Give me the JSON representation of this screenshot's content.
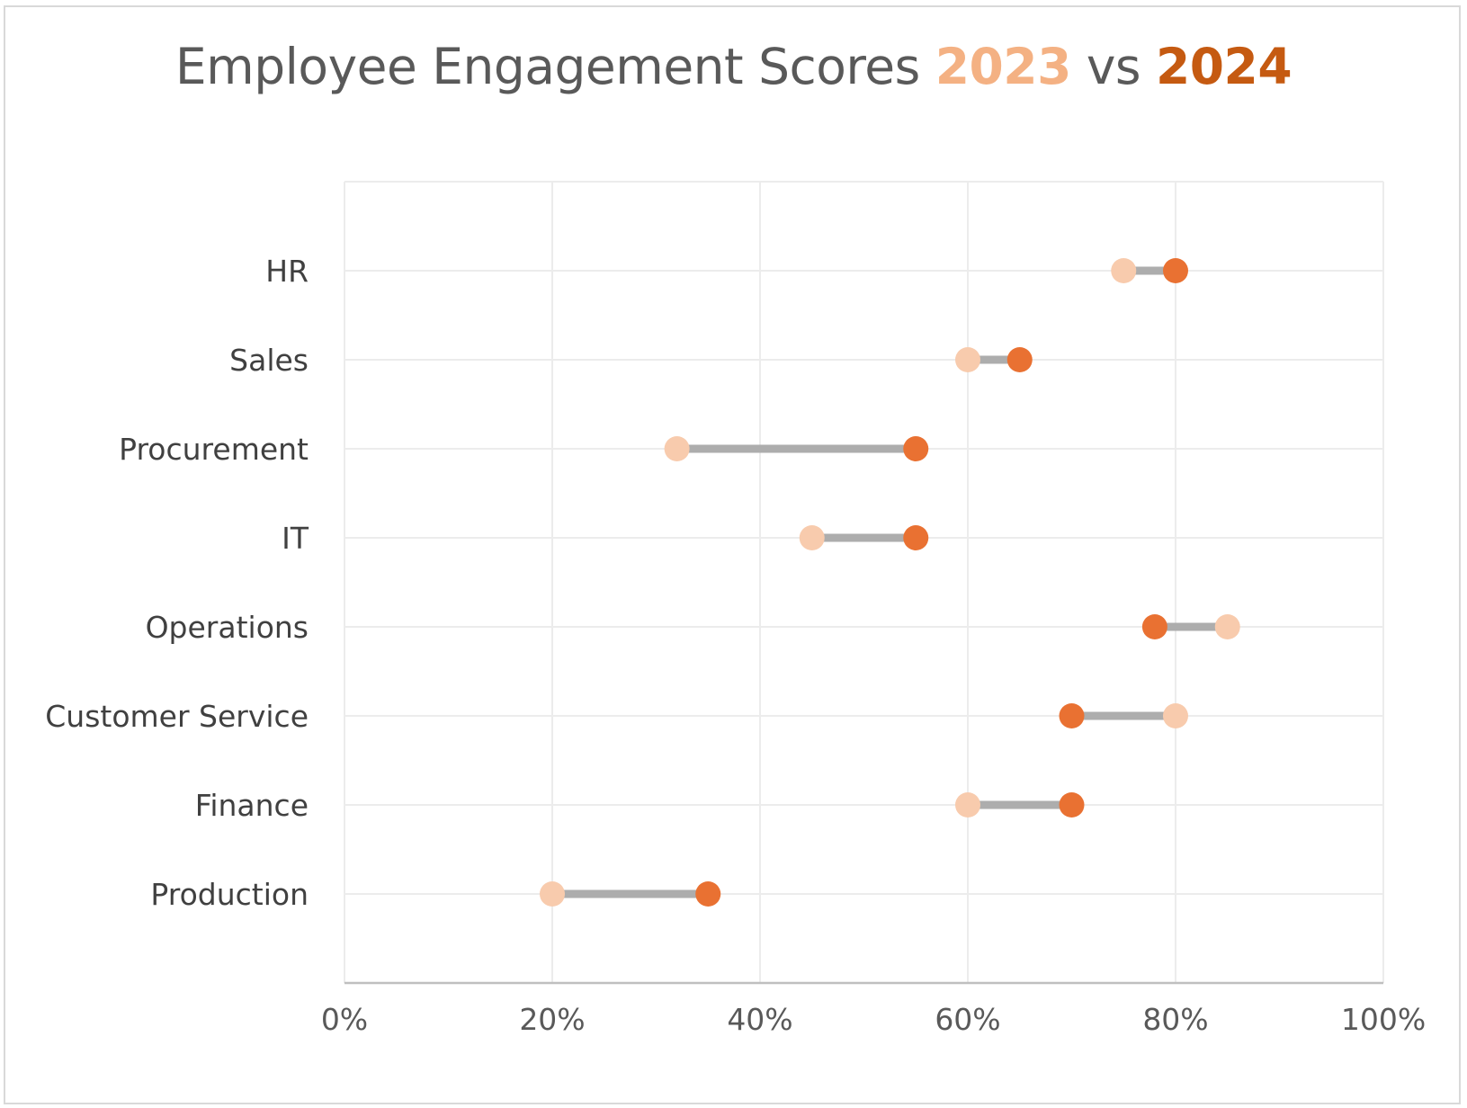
{
  "chart_data": {
    "type": "dumbbell",
    "title": {
      "prefix": "Employee Engagement Scores ",
      "series_a_label": "2023",
      "middle": " vs ",
      "series_b_label": "2024"
    },
    "categories": [
      "HR",
      "Sales",
      "Procurement",
      "IT",
      "Operations",
      "Customer Service",
      "Finance",
      "Production"
    ],
    "series": [
      {
        "name": "2023",
        "color": "#f8cbad",
        "values": [
          0.75,
          0.6,
          0.32,
          0.45,
          0.85,
          0.8,
          0.6,
          0.2
        ]
      },
      {
        "name": "2024",
        "color": "#e97132",
        "values": [
          0.8,
          0.65,
          0.55,
          0.55,
          0.78,
          0.7,
          0.7,
          0.35
        ]
      }
    ],
    "connector_color": "#adadad",
    "xlim": [
      0,
      1
    ],
    "x_ticks": [
      0,
      0.2,
      0.4,
      0.6,
      0.8,
      1.0
    ],
    "x_tick_labels": [
      "0%",
      "20%",
      "40%",
      "60%",
      "80%",
      "100%"
    ],
    "grid": true,
    "legend": "none"
  }
}
